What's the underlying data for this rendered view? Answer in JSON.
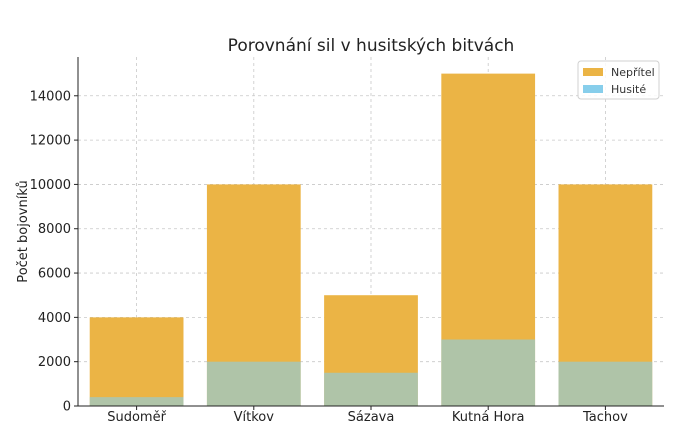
{
  "chart_data": {
    "type": "bar",
    "stacking": "overlay",
    "title": "Porovnání sil v husitských bitvách",
    "xlabel": "",
    "ylabel": "Počet bojovníků",
    "categories": [
      "Sudoměř",
      "Vítkov",
      "Sázava",
      "Kutná Hora",
      "Tachov"
    ],
    "series": [
      {
        "name": "Nepřítel",
        "values": [
          4000,
          10000,
          5000,
          15000,
          10000
        ],
        "color": "#ebb445"
      },
      {
        "name": "Husité",
        "values": [
          400,
          2000,
          1500,
          3000,
          2000
        ],
        "color": "#87ceeb",
        "opacity": 0.6
      }
    ],
    "ylim": [
      0,
      15750
    ],
    "yticks": [
      0,
      2000,
      4000,
      6000,
      8000,
      10000,
      12000,
      14000
    ],
    "ytick_labels": [
      "0",
      "2000",
      "4000",
      "6000",
      "8000",
      "10000",
      "12000",
      "14000"
    ],
    "grid": true,
    "legend_position": "top-right"
  }
}
